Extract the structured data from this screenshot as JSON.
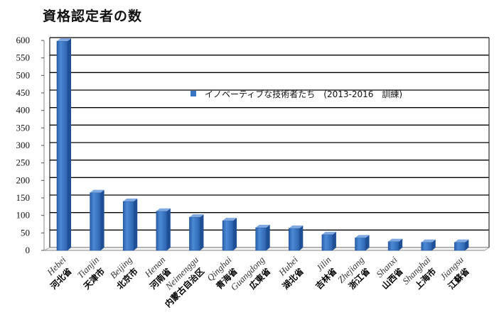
{
  "title": "資格認定者の数",
  "chart_data": {
    "type": "bar",
    "title": "資格認定者の数",
    "ylim": [
      0,
      600
    ],
    "yticks": [
      0,
      50,
      100,
      150,
      200,
      250,
      300,
      350,
      400,
      450,
      500,
      550,
      600
    ],
    "grid": true,
    "legend_position": "center-right",
    "series": [
      {
        "name": "イノベーティブな技術者たち　(2013-2016　訓練)",
        "color": "#3a74c4",
        "values": [
          598,
          165,
          140,
          112,
          95,
          85,
          65,
          63,
          45,
          36,
          25,
          23,
          23
        ]
      }
    ],
    "categories": [
      {
        "en": "Hebei",
        "jp": "河北省"
      },
      {
        "en": "Tianjin",
        "jp": "天津市"
      },
      {
        "en": "Beijing",
        "jp": "北京市"
      },
      {
        "en": "Henan",
        "jp": "河南省"
      },
      {
        "en": "Neimenggu",
        "jp": "内蒙古自治区"
      },
      {
        "en": "Qinghai",
        "jp": "青海省"
      },
      {
        "en": "Guangdong",
        "jp": "広東省"
      },
      {
        "en": "Hubei",
        "jp": "湖北省"
      },
      {
        "en": "Jilin",
        "jp": "吉林省"
      },
      {
        "en": "Zhejiang",
        "jp": "浙江省"
      },
      {
        "en": "Shanxi",
        "jp": "山西省"
      },
      {
        "en": "Shanghai",
        "jp": "上海市"
      },
      {
        "en": "Jiangsu",
        "jp": "江蘇省"
      }
    ]
  }
}
